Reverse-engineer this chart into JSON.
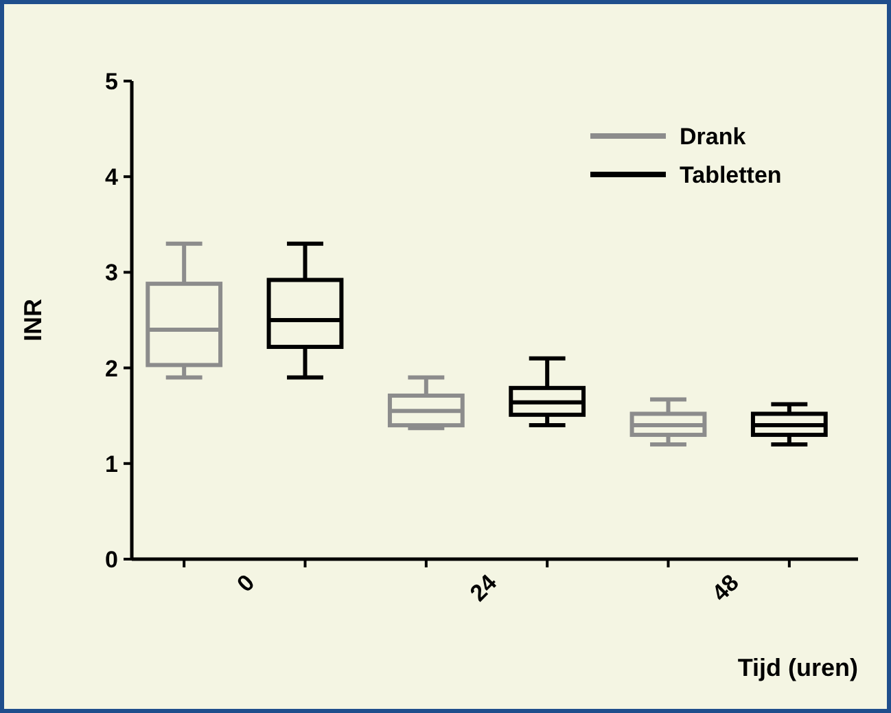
{
  "chart_data": {
    "type": "box",
    "xlabel": "Tijd (uren)",
    "ylabel": "INR",
    "categories": [
      "0",
      "24",
      "48"
    ],
    "ylim": [
      0,
      5
    ],
    "yticks": [
      0,
      1,
      2,
      3,
      4,
      5
    ],
    "legend": "top right",
    "series": [
      {
        "name": "Drank",
        "color": "#8c8c8c",
        "boxes": [
          {
            "low": 1.9,
            "q1": 2.03,
            "median": 2.4,
            "q3": 2.88,
            "high": 3.3
          },
          {
            "low": 1.37,
            "q1": 1.4,
            "median": 1.55,
            "q3": 1.71,
            "high": 1.9
          },
          {
            "low": 1.2,
            "q1": 1.3,
            "median": 1.4,
            "q3": 1.52,
            "high": 1.67
          }
        ]
      },
      {
        "name": "Tabletten",
        "color": "#000000",
        "boxes": [
          {
            "low": 1.9,
            "q1": 2.22,
            "median": 2.5,
            "q3": 2.92,
            "high": 3.3
          },
          {
            "low": 1.4,
            "q1": 1.51,
            "median": 1.64,
            "q3": 1.79,
            "high": 2.1
          },
          {
            "low": 1.2,
            "q1": 1.3,
            "median": 1.4,
            "q3": 1.52,
            "high": 1.62
          }
        ]
      }
    ]
  }
}
